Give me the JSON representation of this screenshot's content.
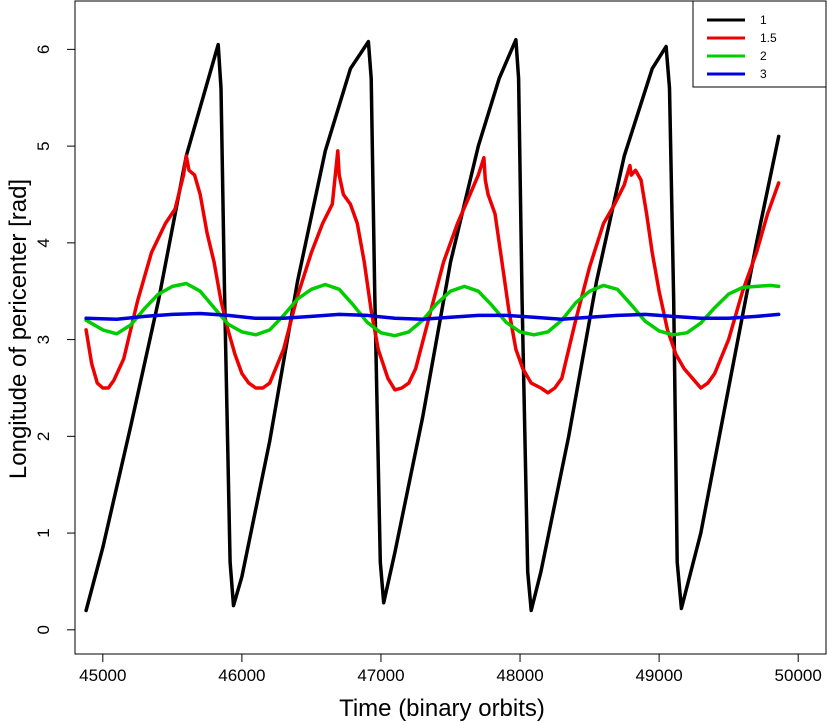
{
  "chart_data": {
    "type": "line",
    "xlabel": "Time (binary orbits)",
    "ylabel": "Longitude of pericenter [rad]",
    "xlim": [
      44800,
      50200
    ],
    "ylim": [
      -0.25,
      6.5
    ],
    "xticks": [
      45000,
      46000,
      47000,
      48000,
      49000,
      50000
    ],
    "yticks": [
      0,
      1,
      2,
      3,
      4,
      5,
      6
    ],
    "grid": false,
    "legend_position": "top-right",
    "series": [
      {
        "name": "1",
        "color": "#000000",
        "x": [
          44880,
          45000,
          45200,
          45400,
          45600,
          45830,
          45850,
          45875,
          45915,
          45940,
          46000,
          46200,
          46400,
          46600,
          46780,
          46910,
          46930,
          46955,
          46995,
          47020,
          47100,
          47300,
          47500,
          47700,
          47850,
          47970,
          47990,
          48015,
          48055,
          48080,
          48150,
          48350,
          48550,
          48750,
          48950,
          49050,
          49075,
          49105,
          49130,
          49160,
          49300,
          49500,
          49700,
          49860
        ],
        "y": [
          0.2,
          0.85,
          2.1,
          3.4,
          4.9,
          6.05,
          5.6,
          3.5,
          0.7,
          0.25,
          0.55,
          1.95,
          3.6,
          4.95,
          5.8,
          6.08,
          5.7,
          3.5,
          0.7,
          0.28,
          0.8,
          2.2,
          3.8,
          5.0,
          5.7,
          6.1,
          5.7,
          3.4,
          0.6,
          0.2,
          0.6,
          2.0,
          3.6,
          4.9,
          5.8,
          6.03,
          5.6,
          3.4,
          0.7,
          0.22,
          1.0,
          2.5,
          4.0,
          5.1
        ]
      },
      {
        "name": "1.5",
        "color": "#ee0000",
        "x": [
          44880,
          44920,
          44960,
          45000,
          45040,
          45080,
          45150,
          45250,
          45350,
          45450,
          45520,
          45580,
          45600,
          45620,
          45660,
          45700,
          45750,
          45800,
          45850,
          45900,
          45950,
          46000,
          46050,
          46100,
          46150,
          46200,
          46300,
          46400,
          46500,
          46580,
          46650,
          46690,
          46700,
          46730,
          46780,
          46830,
          46880,
          46930,
          46980,
          47050,
          47100,
          47150,
          47200,
          47250,
          47350,
          47450,
          47550,
          47640,
          47700,
          47740,
          47750,
          47770,
          47820,
          47870,
          47920,
          47970,
          48020,
          48080,
          48150,
          48200,
          48250,
          48300,
          48400,
          48500,
          48600,
          48680,
          48750,
          48790,
          48800,
          48830,
          48870,
          48910,
          48950,
          49000,
          49060,
          49120,
          49180,
          49240,
          49300,
          49350,
          49400,
          49500,
          49600,
          49700,
          49780,
          49860
        ],
        "y": [
          3.1,
          2.75,
          2.55,
          2.5,
          2.5,
          2.58,
          2.8,
          3.4,
          3.9,
          4.2,
          4.35,
          4.7,
          4.9,
          4.75,
          4.7,
          4.5,
          4.1,
          3.8,
          3.4,
          3.1,
          2.85,
          2.65,
          2.55,
          2.5,
          2.5,
          2.55,
          2.9,
          3.45,
          3.9,
          4.2,
          4.4,
          4.95,
          4.7,
          4.5,
          4.4,
          4.2,
          3.8,
          3.3,
          2.9,
          2.6,
          2.48,
          2.5,
          2.55,
          2.7,
          3.25,
          3.8,
          4.2,
          4.5,
          4.7,
          4.88,
          4.65,
          4.5,
          4.3,
          3.8,
          3.3,
          2.9,
          2.7,
          2.55,
          2.5,
          2.45,
          2.5,
          2.6,
          3.2,
          3.75,
          4.2,
          4.4,
          4.6,
          4.8,
          4.7,
          4.75,
          4.65,
          4.3,
          3.9,
          3.5,
          3.1,
          2.85,
          2.7,
          2.6,
          2.5,
          2.55,
          2.65,
          3.0,
          3.5,
          3.9,
          4.3,
          4.62
        ]
      },
      {
        "name": "2",
        "color": "#00cc00",
        "x": [
          44880,
          45000,
          45100,
          45200,
          45300,
          45400,
          45500,
          45600,
          45700,
          45800,
          45900,
          46000,
          46100,
          46200,
          46300,
          46400,
          46500,
          46600,
          46700,
          46800,
          46900,
          47000,
          47100,
          47200,
          47300,
          47400,
          47500,
          47600,
          47700,
          47800,
          47900,
          48000,
          48100,
          48200,
          48300,
          48400,
          48500,
          48600,
          48700,
          48800,
          48900,
          49000,
          49100,
          49200,
          49300,
          49400,
          49500,
          49600,
          49700,
          49800,
          49860
        ],
        "y": [
          3.2,
          3.1,
          3.06,
          3.15,
          3.32,
          3.47,
          3.55,
          3.58,
          3.5,
          3.33,
          3.16,
          3.08,
          3.05,
          3.1,
          3.25,
          3.42,
          3.52,
          3.57,
          3.52,
          3.36,
          3.18,
          3.07,
          3.04,
          3.08,
          3.2,
          3.37,
          3.5,
          3.55,
          3.5,
          3.35,
          3.18,
          3.08,
          3.05,
          3.08,
          3.2,
          3.38,
          3.5,
          3.56,
          3.52,
          3.36,
          3.19,
          3.09,
          3.05,
          3.07,
          3.17,
          3.33,
          3.47,
          3.54,
          3.55,
          3.56,
          3.55
        ]
      },
      {
        "name": "3",
        "color": "#0000dd",
        "x": [
          44880,
          45100,
          45300,
          45500,
          45700,
          45900,
          46100,
          46300,
          46500,
          46700,
          46900,
          47100,
          47300,
          47500,
          47700,
          47900,
          48100,
          48300,
          48500,
          48700,
          48900,
          49100,
          49300,
          49500,
          49700,
          49860
        ],
        "y": [
          3.22,
          3.21,
          3.24,
          3.26,
          3.27,
          3.25,
          3.22,
          3.22,
          3.24,
          3.26,
          3.25,
          3.22,
          3.21,
          3.23,
          3.25,
          3.25,
          3.23,
          3.21,
          3.23,
          3.25,
          3.26,
          3.24,
          3.22,
          3.22,
          3.24,
          3.26
        ]
      }
    ]
  }
}
